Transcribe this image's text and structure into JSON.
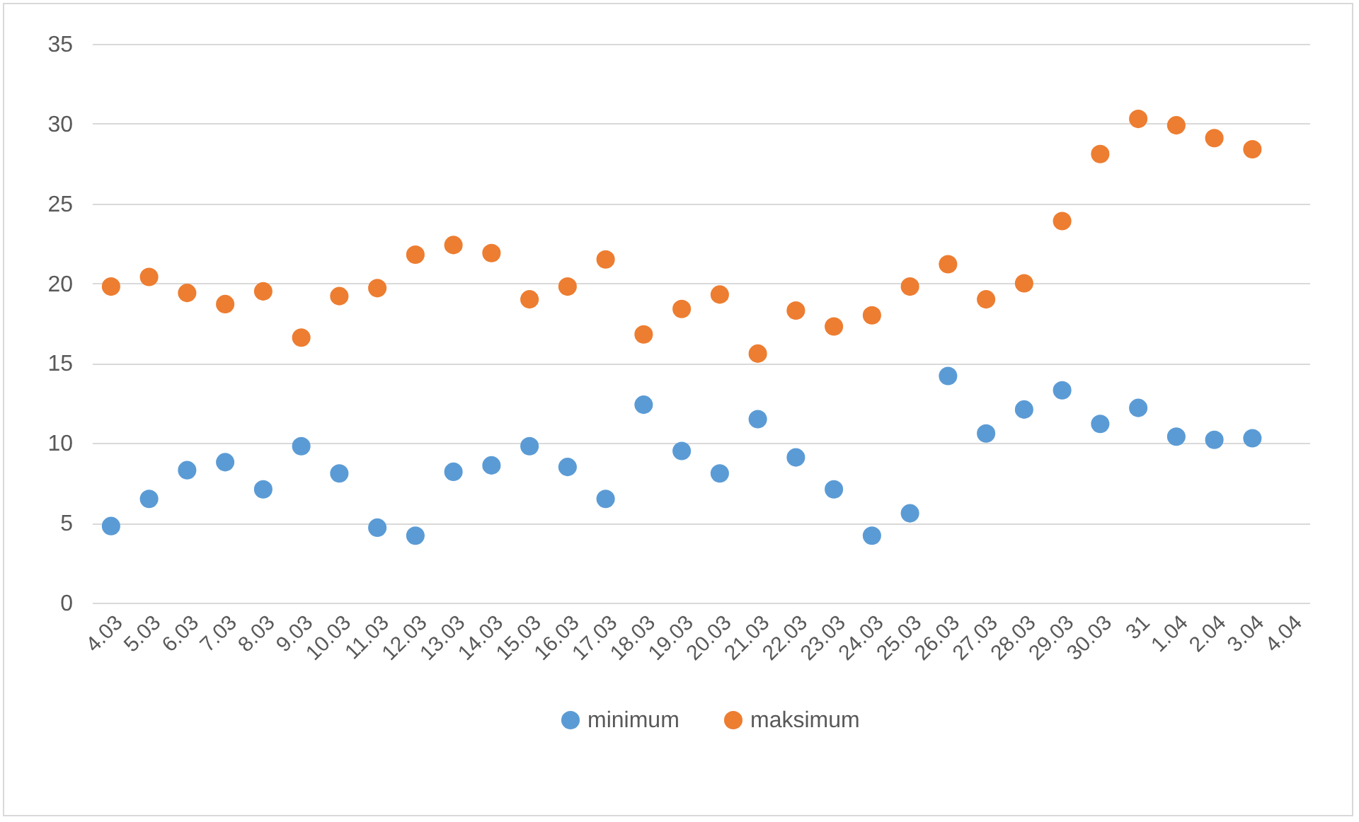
{
  "chart_data": {
    "type": "scatter",
    "categories": [
      "4.03",
      "5.03",
      "6.03",
      "7.03",
      "8.03",
      "9.03",
      "10.03",
      "11.03",
      "12.03",
      "13.03",
      "14.03",
      "15.03",
      "16.03",
      "17.03",
      "18.03",
      "19.03",
      "20.03",
      "21.03",
      "22.03",
      "23.03",
      "24.03",
      "25.03",
      "26.03",
      "27.03",
      "28.03",
      "29.03",
      "30.03",
      "31",
      "1.04",
      "2.04",
      "3.04",
      "4.04"
    ],
    "series": [
      {
        "name": "minimum",
        "color": "#5b9bd5",
        "values": [
          4.8,
          6.5,
          8.3,
          8.8,
          7.1,
          9.8,
          8.1,
          4.7,
          4.2,
          8.2,
          8.6,
          9.8,
          8.5,
          6.5,
          12.4,
          9.5,
          8.1,
          11.5,
          9.1,
          7.1,
          4.2,
          5.6,
          14.2,
          10.6,
          12.1,
          13.3,
          11.2,
          12.2,
          10.4,
          10.2,
          10.3,
          null
        ]
      },
      {
        "name": "maksimum",
        "color": "#ed7d31",
        "values": [
          19.8,
          20.4,
          19.4,
          18.7,
          19.5,
          16.6,
          19.2,
          19.7,
          21.8,
          22.4,
          21.9,
          19.0,
          19.8,
          21.5,
          16.8,
          18.4,
          19.3,
          15.6,
          18.3,
          17.3,
          18.0,
          19.8,
          21.2,
          19.0,
          20.0,
          23.9,
          28.1,
          30.3,
          29.9,
          29.1,
          28.4,
          null
        ]
      }
    ],
    "ylim": [
      0,
      35
    ],
    "yticks": [
      0,
      5,
      10,
      15,
      20,
      25,
      30,
      35
    ],
    "grid": "y",
    "legend": "bottom",
    "marker": "circle"
  }
}
